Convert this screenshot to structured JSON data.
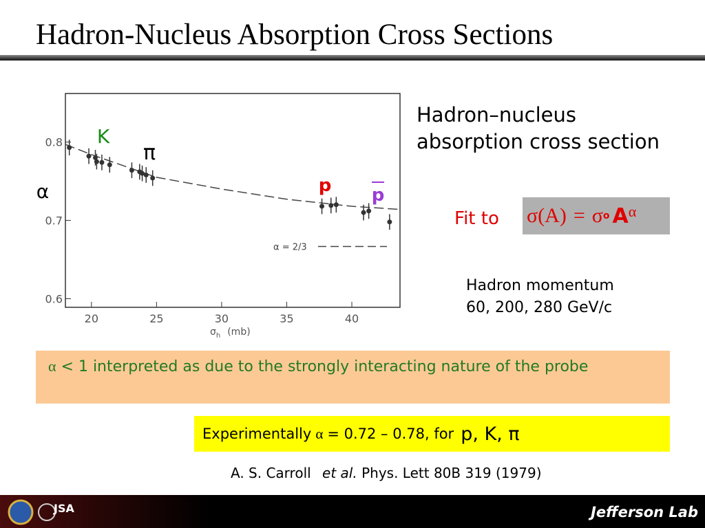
{
  "header": {
    "title": "Hadron-Nucleus Absorption Cross Sections"
  },
  "chart_data": {
    "type": "scatter",
    "ylabel": "α",
    "xlabel": {
      "symbol": "σ",
      "subscript": "h",
      "unit": "(mb)"
    },
    "xlim": [
      18,
      43.7
    ],
    "ylim": [
      0.589,
      0.862
    ],
    "xticks": [
      20,
      25,
      30,
      35,
      40
    ],
    "yticks": [
      0.6,
      0.7,
      0.8
    ],
    "x": [
      18.3,
      19.8,
      20.3,
      20.4,
      20.8,
      21.4,
      23.1,
      23.7,
      23.9,
      24.2,
      24.7,
      37.7,
      38.4,
      38.8,
      40.9,
      41.3,
      42.9
    ],
    "series": [
      {
        "color": "#333333",
        "values": [
          0.793,
          0.782,
          0.78,
          0.775,
          0.774,
          0.771,
          0.764,
          0.762,
          0.76,
          0.758,
          0.754,
          0.718,
          0.719,
          0.72,
          0.71,
          0.712,
          0.698
        ],
        "errors": [
          0.01,
          0.01,
          0.01,
          0.01,
          0.01,
          0.01,
          0.01,
          0.01,
          0.01,
          0.01,
          0.01,
          0.01,
          0.01,
          0.01,
          0.01,
          0.01,
          0.01
        ]
      }
    ],
    "fit": {
      "color": "#444444",
      "x": [
        18,
        20,
        25,
        30,
        35,
        40,
        43.7
      ],
      "values": [
        0.797,
        0.784,
        0.755,
        0.74,
        0.727,
        0.718,
        0.714
      ]
    },
    "reference": {
      "label": "α = 2/3",
      "value": 0.6667
    },
    "annotations": [
      {
        "text": "K",
        "color": "#1a8a1a"
      },
      {
        "text": "π",
        "color": "#000000"
      },
      {
        "text": "p",
        "color": "#e00000"
      },
      {
        "text": "p",
        "color": "#9a3cd6",
        "overline": true
      }
    ]
  },
  "side": {
    "description": [
      "Hadron–nucleus",
      "absorption cross section"
    ],
    "fit_label": "Fit to",
    "formula": {
      "lhs": "σ(A)",
      "eq": "=",
      "sigma": "σ",
      "sub": "o",
      "base": "A",
      "exponent": "α"
    },
    "momentum": [
      "Hadron momentum",
      "60, 200, 280 GeV/c"
    ]
  },
  "note": {
    "symbol": "α",
    "text": "< 1  interpreted as due to the strongly interacting nature of the probe"
  },
  "result": {
    "prefix": "Experimentally",
    "symbol": "α",
    "text": "=  0.72 – 0.78, for",
    "particles": "p, K, π"
  },
  "citation": {
    "author": "A. S. Carroll",
    "etal": "et al.",
    "journal": "Phys. Lett  80B 319 (1979)"
  },
  "footer": {
    "logo_text": "JSA",
    "brand": "Jefferson Lab"
  }
}
